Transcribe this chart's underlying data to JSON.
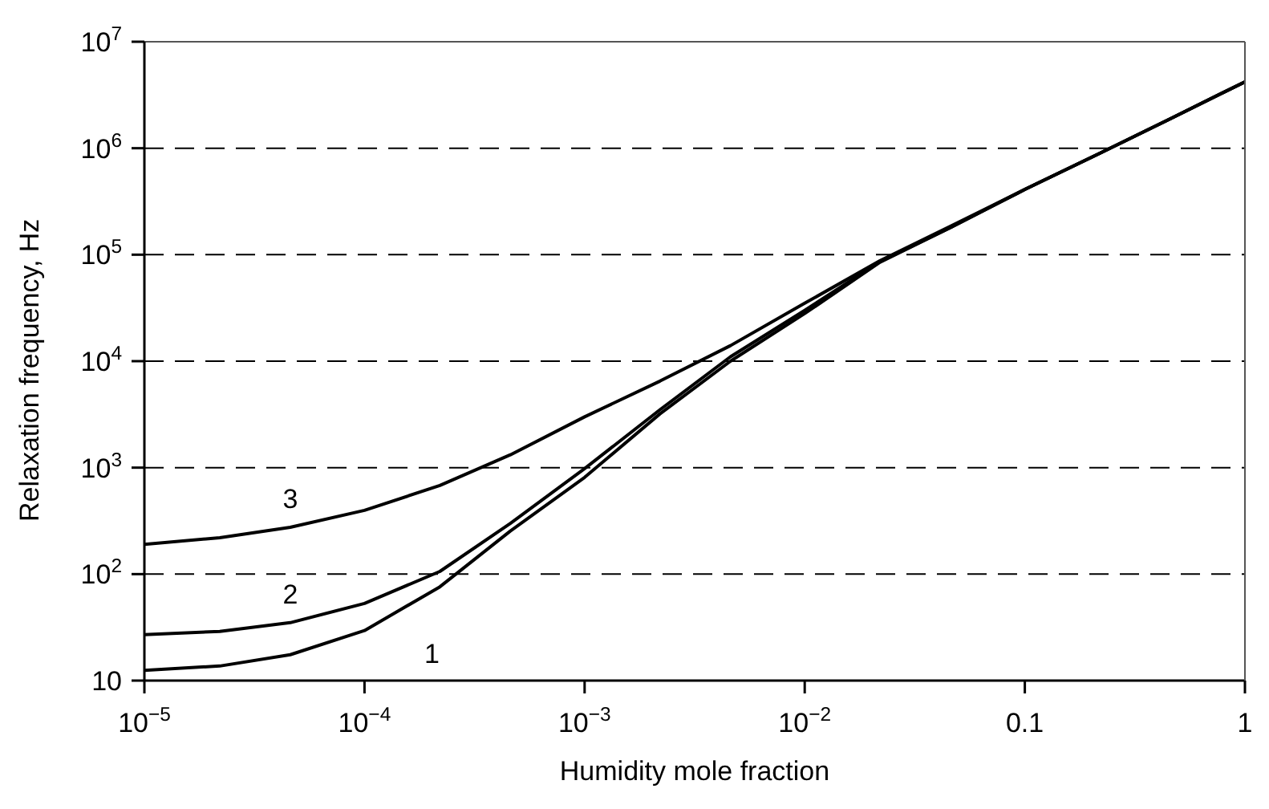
{
  "chart_data": {
    "type": "line",
    "xlabel": "Humidity mole fraction",
    "ylabel": "Relaxation frequency, Hz",
    "log": "xy",
    "grid": "y",
    "legend": false,
    "marker": "none",
    "line_style": "solid",
    "x": [
      1e-05,
      2.2e-05,
      4.6e-05,
      0.0001,
      0.00022,
      0.00046,
      0.001,
      0.0022,
      0.0046,
      0.01,
      0.022,
      0.046,
      0.1,
      0.22,
      0.46,
      1
    ],
    "series": [
      {
        "name": "1",
        "color": "#000000",
        "values": [
          12.5,
          13.7,
          17.5,
          29.5,
          76,
          254,
          810,
          3200,
          10000,
          28000,
          85000,
          180000,
          410000,
          900000,
          1900000,
          4200000
        ]
      },
      {
        "name": "2",
        "color": "#000000",
        "values": [
          27,
          29,
          35,
          53,
          106,
          300,
          980,
          3500,
          11000,
          30000,
          86000,
          180000,
          410000,
          900000,
          1900000,
          4200000
        ]
      },
      {
        "name": "3",
        "color": "#000000",
        "values": [
          190,
          220,
          275,
          397,
          680,
          1320,
          3000,
          6500,
          14000,
          35000,
          88000,
          185000,
          410000,
          900000,
          1900000,
          4200000
        ]
      }
    ],
    "xlim": [
      1e-05,
      1
    ],
    "ylim": [
      10,
      10000000
    ],
    "xticks": [
      {
        "value": 1e-05,
        "label": "10$^{−5}$"
      },
      {
        "value": 0.0001,
        "label": "10$^{−4}$"
      },
      {
        "value": 0.001,
        "label": "10$^{−3}$"
      },
      {
        "value": 0.01,
        "label": "10$^{−2}$"
      },
      0.1,
      1
    ],
    "yticks": [
      10,
      {
        "value": 100,
        "label": "10$^{2}$"
      },
      {
        "value": 1000,
        "label": "10$^{3}$"
      },
      {
        "value": 10000,
        "label": "10$^{4}$"
      },
      {
        "value": 100000,
        "label": "10$^{5}$"
      },
      {
        "value": 1000000,
        "label": "10$^{6}$"
      },
      {
        "value": 10000000,
        "label": "10$^{7}$"
      }
    ]
  }
}
